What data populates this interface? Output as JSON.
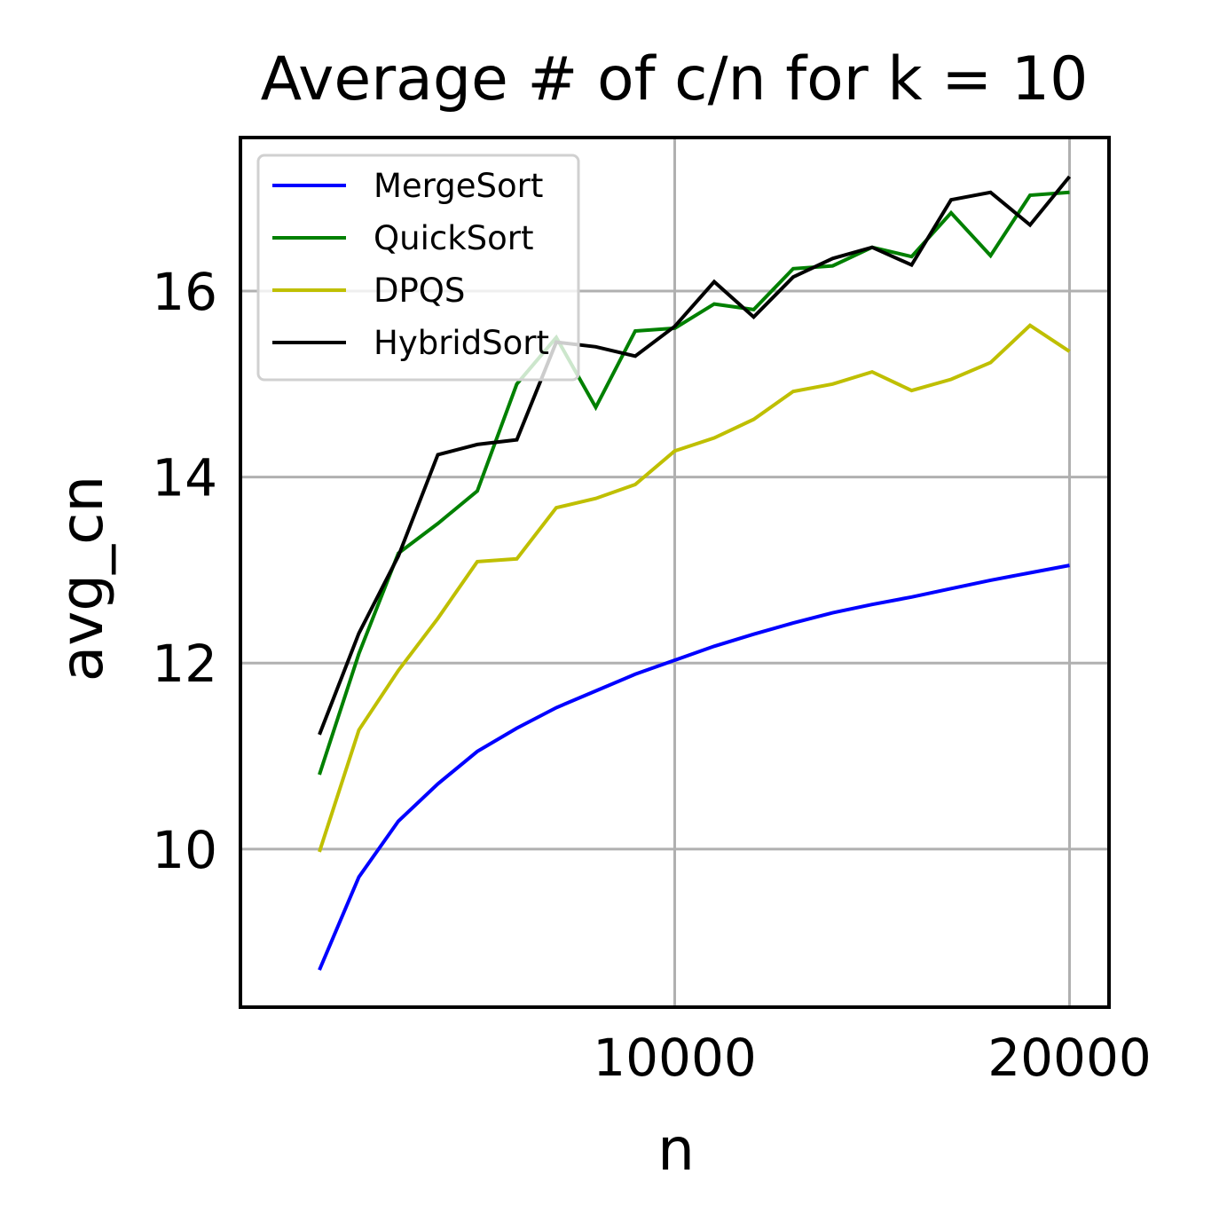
{
  "chart_data": {
    "type": "line",
    "title": "Average # of c/n for k = 10",
    "xlabel": "n",
    "ylabel": "avg_cn",
    "xlim": [
      -1000,
      21000
    ],
    "ylim": [
      8.3,
      17.65
    ],
    "xticks": [
      10000,
      20000
    ],
    "yticks": [
      10,
      12,
      14,
      16
    ],
    "grid": true,
    "legend_position": "upper-left",
    "x": [
      1000,
      2000,
      3000,
      4000,
      5000,
      6000,
      7000,
      8000,
      9000,
      10000,
      11000,
      12000,
      13000,
      14000,
      15000,
      16000,
      17000,
      18000,
      19000,
      20000
    ],
    "series": [
      {
        "name": "MergeSort",
        "color": "#0000ff",
        "values": [
          8.7,
          9.7,
          10.3,
          10.7,
          11.05,
          11.3,
          11.52,
          11.7,
          11.88,
          12.03,
          12.18,
          12.31,
          12.43,
          12.54,
          12.63,
          12.71,
          12.8,
          12.89,
          12.97,
          13.05
        ]
      },
      {
        "name": "QuickSort",
        "color": "#008000",
        "values": [
          10.8,
          12.1,
          13.18,
          13.5,
          13.85,
          15.0,
          15.5,
          14.75,
          15.57,
          15.6,
          15.86,
          15.8,
          16.24,
          16.27,
          16.47,
          16.37,
          16.84,
          16.38,
          17.03,
          17.06
        ]
      },
      {
        "name": "DPQS",
        "color": "#bfbf00",
        "values": [
          9.97,
          11.28,
          11.92,
          12.48,
          13.09,
          13.12,
          13.67,
          13.77,
          13.92,
          14.28,
          14.42,
          14.62,
          14.92,
          15.0,
          15.13,
          14.93,
          15.05,
          15.23,
          15.63,
          15.35
        ]
      },
      {
        "name": "HybridSort",
        "color": "#000000",
        "values": [
          11.23,
          12.32,
          13.15,
          14.24,
          14.35,
          14.4,
          15.45,
          15.4,
          15.3,
          15.62,
          16.1,
          15.72,
          16.15,
          16.35,
          16.47,
          16.28,
          16.98,
          17.06,
          16.71,
          17.23
        ]
      }
    ]
  }
}
